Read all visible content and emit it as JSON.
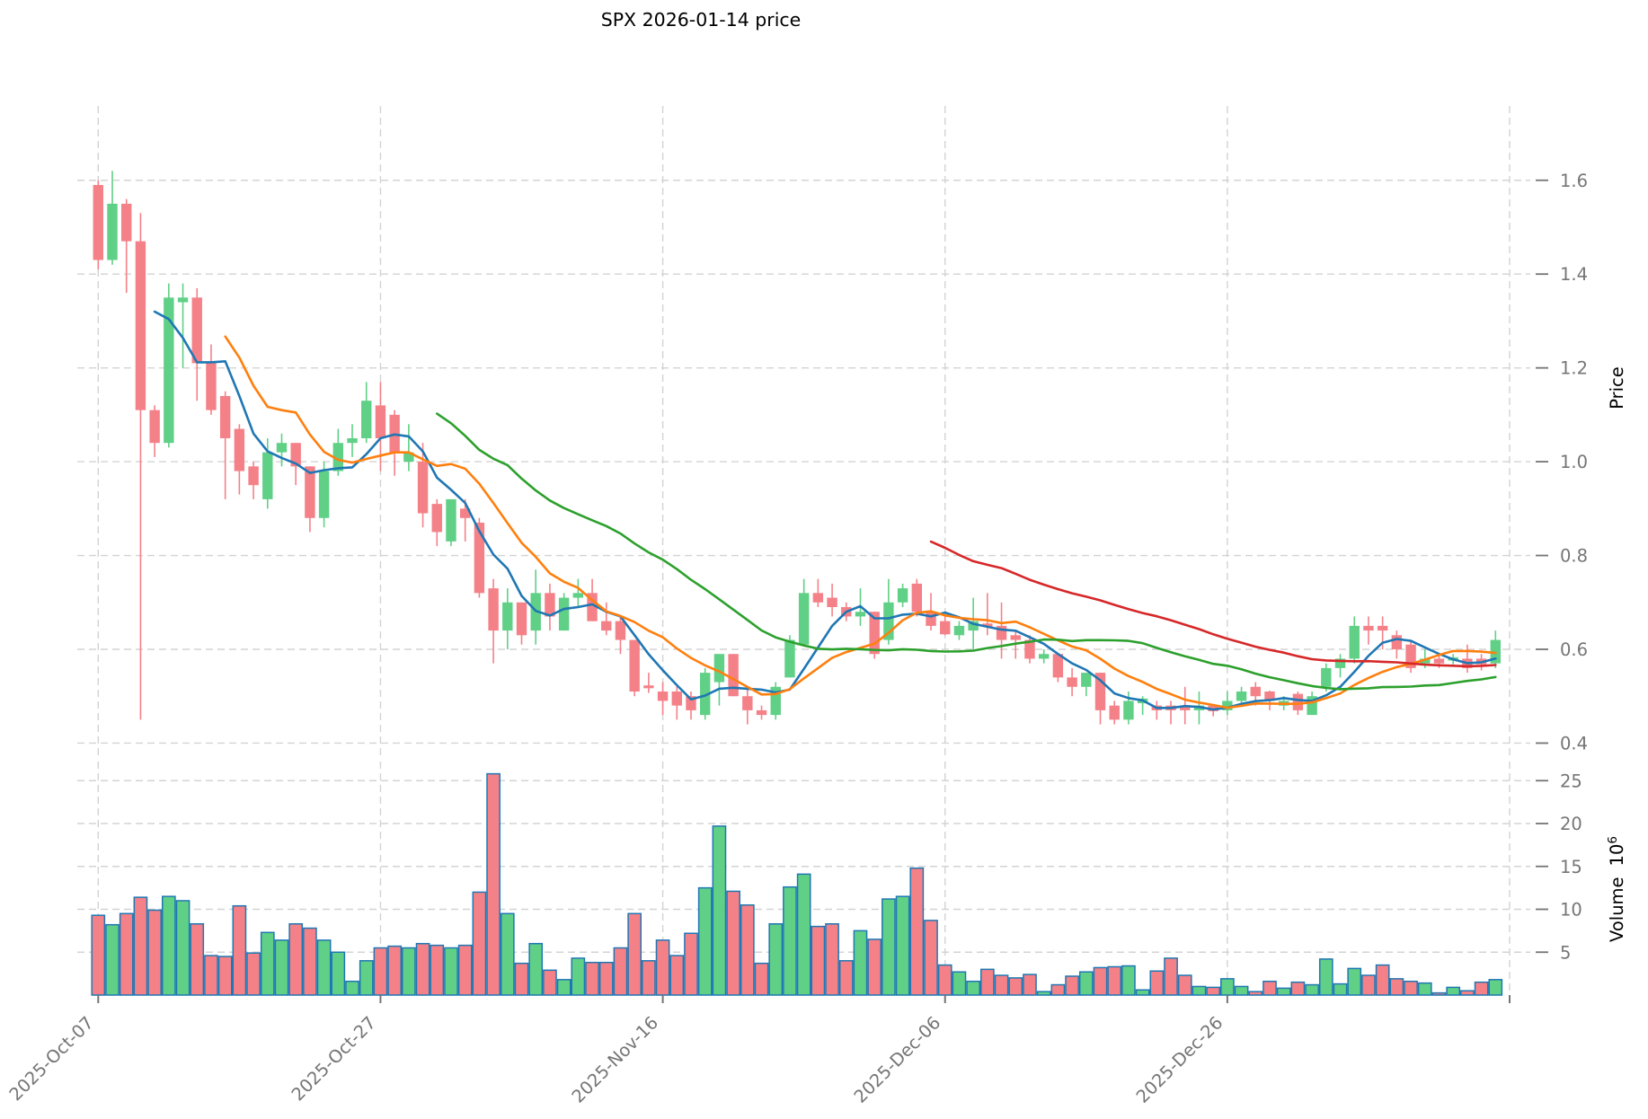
{
  "title": "SPX  2026-01-14  price",
  "price_axis": {
    "label": "Price",
    "ticks": [
      1.6,
      1.4,
      1.2,
      1.0,
      0.8,
      0.6,
      0.4
    ]
  },
  "volume_axis": {
    "label": "Volume",
    "unit_base": "10",
    "unit_exp": "6",
    "ticks": [
      25,
      20,
      15,
      10,
      5
    ]
  },
  "x_axis": {
    "tick_labels": [
      "2025-Oct-07",
      "2025-Oct-27",
      "2025-Nov-16",
      "2025-Dec-06",
      "2025-Dec-26"
    ],
    "tick_indices": [
      0,
      20,
      40,
      60,
      80
    ],
    "unlabeled_tick_index": 100
  },
  "colors": {
    "up": "#60d086",
    "down": "#f48188",
    "ma5": "#1f77b4",
    "ma10": "#ff7f0e",
    "ma25": "#2ca02c",
    "ma60": "#d62728",
    "volume_edge": "#1f77b4",
    "grid": "#d3d3d3",
    "tick_text": "#757575",
    "title_text": "#000000"
  },
  "chart_data": {
    "type": "candlestick",
    "title": "SPX  2026-01-14  price",
    "ylabel": "Price",
    "ylabel2": "Volume 10^6",
    "price_ylim": [
      0.374,
      1.758
    ],
    "volume_ylim": [
      0,
      27.2
    ],
    "grid": true,
    "ma_series": [
      {
        "name": "MA5",
        "window": 5,
        "color": "#1f77b4"
      },
      {
        "name": "MA10",
        "window": 10,
        "color": "#ff7f0e"
      },
      {
        "name": "MA25",
        "window": 25,
        "color": "#2ca02c"
      },
      {
        "name": "MA60",
        "window": 60,
        "color": "#d62728"
      }
    ],
    "dates": [
      "2025-10-07",
      "2025-10-08",
      "2025-10-09",
      "2025-10-10",
      "2025-10-11",
      "2025-10-12",
      "2025-10-13",
      "2025-10-14",
      "2025-10-15",
      "2025-10-16",
      "2025-10-17",
      "2025-10-18",
      "2025-10-19",
      "2025-10-20",
      "2025-10-21",
      "2025-10-22",
      "2025-10-23",
      "2025-10-24",
      "2025-10-25",
      "2025-10-26",
      "2025-10-27",
      "2025-10-28",
      "2025-10-29",
      "2025-10-30",
      "2025-10-31",
      "2025-11-01",
      "2025-11-02",
      "2025-11-03",
      "2025-11-04",
      "2025-11-05",
      "2025-11-06",
      "2025-11-07",
      "2025-11-08",
      "2025-11-09",
      "2025-11-10",
      "2025-11-11",
      "2025-11-12",
      "2025-11-13",
      "2025-11-14",
      "2025-11-15",
      "2025-11-16",
      "2025-11-17",
      "2025-11-18",
      "2025-11-19",
      "2025-11-20",
      "2025-11-21",
      "2025-11-22",
      "2025-11-23",
      "2025-11-24",
      "2025-11-25",
      "2025-11-26",
      "2025-11-27",
      "2025-11-28",
      "2025-11-29",
      "2025-11-30",
      "2025-12-01",
      "2025-12-02",
      "2025-12-03",
      "2025-12-04",
      "2025-12-05",
      "2025-12-06",
      "2025-12-07",
      "2025-12-08",
      "2025-12-09",
      "2025-12-10",
      "2025-12-11",
      "2025-12-12",
      "2025-12-13",
      "2025-12-14",
      "2025-12-15",
      "2025-12-16",
      "2025-12-17",
      "2025-12-18",
      "2025-12-19",
      "2025-12-20",
      "2025-12-21",
      "2025-12-22",
      "2025-12-23",
      "2025-12-24",
      "2025-12-25",
      "2025-12-26",
      "2025-12-27",
      "2025-12-28",
      "2025-12-29",
      "2025-12-30",
      "2025-12-31",
      "2026-01-01",
      "2026-01-02",
      "2026-01-03",
      "2026-01-04",
      "2026-01-05",
      "2026-01-06",
      "2026-01-07",
      "2026-01-08",
      "2026-01-09",
      "2026-01-10",
      "2026-01-11",
      "2026-01-12",
      "2026-01-13",
      "2026-01-14"
    ],
    "ohlc": [
      [
        1.59,
        1.6,
        1.41,
        1.43
      ],
      [
        1.43,
        1.62,
        1.42,
        1.55
      ],
      [
        1.55,
        1.56,
        1.36,
        1.47
      ],
      [
        1.47,
        1.53,
        0.45,
        1.11
      ],
      [
        1.11,
        1.12,
        1.01,
        1.04
      ],
      [
        1.04,
        1.38,
        1.03,
        1.35
      ],
      [
        1.34,
        1.38,
        1.2,
        1.35
      ],
      [
        1.35,
        1.37,
        1.13,
        1.21
      ],
      [
        1.21,
        1.25,
        1.1,
        1.11
      ],
      [
        1.14,
        1.15,
        0.92,
        1.05
      ],
      [
        1.07,
        1.08,
        0.93,
        0.98
      ],
      [
        0.99,
        1.0,
        0.92,
        0.95
      ],
      [
        0.92,
        1.05,
        0.9,
        1.02
      ],
      [
        1.02,
        1.06,
        0.99,
        1.04
      ],
      [
        1.04,
        1.04,
        0.95,
        0.99
      ],
      [
        0.99,
        0.99,
        0.85,
        0.88
      ],
      [
        0.88,
        1.0,
        0.86,
        0.98
      ],
      [
        0.98,
        1.07,
        0.97,
        1.04
      ],
      [
        1.04,
        1.08,
        1.01,
        1.05
      ],
      [
        1.05,
        1.17,
        1.04,
        1.13
      ],
      [
        1.12,
        1.17,
        0.98,
        1.05
      ],
      [
        1.1,
        1.11,
        0.97,
        1.02
      ],
      [
        1.0,
        1.08,
        0.98,
        1.02
      ],
      [
        1.0,
        1.04,
        0.86,
        0.89
      ],
      [
        0.91,
        0.92,
        0.82,
        0.85
      ],
      [
        0.83,
        0.92,
        0.82,
        0.92
      ],
      [
        0.9,
        0.92,
        0.83,
        0.88
      ],
      [
        0.87,
        0.88,
        0.71,
        0.72
      ],
      [
        0.73,
        0.75,
        0.57,
        0.64
      ],
      [
        0.64,
        0.73,
        0.6,
        0.7
      ],
      [
        0.7,
        0.7,
        0.61,
        0.63
      ],
      [
        0.64,
        0.77,
        0.61,
        0.72
      ],
      [
        0.72,
        0.74,
        0.64,
        0.67
      ],
      [
        0.64,
        0.72,
        0.64,
        0.71
      ],
      [
        0.71,
        0.75,
        0.69,
        0.72
      ],
      [
        0.72,
        0.75,
        0.66,
        0.66
      ],
      [
        0.66,
        0.7,
        0.63,
        0.64
      ],
      [
        0.66,
        0.67,
        0.59,
        0.62
      ],
      [
        0.62,
        0.62,
        0.5,
        0.51
      ],
      [
        0.523,
        0.55,
        0.507,
        0.517
      ],
      [
        0.51,
        0.53,
        0.46,
        0.49
      ],
      [
        0.51,
        0.52,
        0.45,
        0.48
      ],
      [
        0.5,
        0.51,
        0.45,
        0.47
      ],
      [
        0.46,
        0.56,
        0.45,
        0.55
      ],
      [
        0.53,
        0.59,
        0.48,
        0.59
      ],
      [
        0.59,
        0.59,
        0.5,
        0.5
      ],
      [
        0.5,
        0.52,
        0.44,
        0.47
      ],
      [
        0.47,
        0.48,
        0.45,
        0.46
      ],
      [
        0.46,
        0.53,
        0.45,
        0.52
      ],
      [
        0.54,
        0.63,
        0.54,
        0.62
      ],
      [
        0.61,
        0.75,
        0.61,
        0.72
      ],
      [
        0.72,
        0.75,
        0.69,
        0.7
      ],
      [
        0.71,
        0.74,
        0.67,
        0.69
      ],
      [
        0.69,
        0.7,
        0.66,
        0.67
      ],
      [
        0.67,
        0.73,
        0.65,
        0.68
      ],
      [
        0.68,
        0.68,
        0.58,
        0.59
      ],
      [
        0.62,
        0.75,
        0.61,
        0.7
      ],
      [
        0.7,
        0.74,
        0.69,
        0.73
      ],
      [
        0.74,
        0.75,
        0.67,
        0.68
      ],
      [
        0.68,
        0.72,
        0.64,
        0.65
      ],
      [
        0.66,
        0.67,
        0.63,
        0.632
      ],
      [
        0.63,
        0.66,
        0.62,
        0.65
      ],
      [
        0.64,
        0.71,
        0.6,
        0.66
      ],
      [
        0.655,
        0.72,
        0.63,
        0.648
      ],
      [
        0.65,
        0.7,
        0.58,
        0.62
      ],
      [
        0.63,
        0.64,
        0.58,
        0.62
      ],
      [
        0.62,
        0.63,
        0.57,
        0.58
      ],
      [
        0.58,
        0.6,
        0.57,
        0.59
      ],
      [
        0.59,
        0.59,
        0.53,
        0.54
      ],
      [
        0.54,
        0.56,
        0.5,
        0.52
      ],
      [
        0.52,
        0.55,
        0.5,
        0.55
      ],
      [
        0.55,
        0.55,
        0.44,
        0.47
      ],
      [
        0.48,
        0.49,
        0.44,
        0.45
      ],
      [
        0.45,
        0.51,
        0.44,
        0.49
      ],
      [
        0.485,
        0.5,
        0.46,
        0.495
      ],
      [
        0.48,
        0.49,
        0.45,
        0.47
      ],
      [
        0.48,
        0.49,
        0.44,
        0.47
      ],
      [
        0.48,
        0.52,
        0.44,
        0.47
      ],
      [
        0.47,
        0.51,
        0.44,
        0.48
      ],
      [
        0.48,
        0.483,
        0.457,
        0.468
      ],
      [
        0.47,
        0.51,
        0.46,
        0.49
      ],
      [
        0.49,
        0.52,
        0.48,
        0.51
      ],
      [
        0.52,
        0.53,
        0.48,
        0.5
      ],
      [
        0.51,
        0.512,
        0.47,
        0.49
      ],
      [
        0.48,
        0.5,
        0.47,
        0.49
      ],
      [
        0.505,
        0.51,
        0.46,
        0.47
      ],
      [
        0.46,
        0.51,
        0.46,
        0.5
      ],
      [
        0.52,
        0.57,
        0.51,
        0.56
      ],
      [
        0.56,
        0.59,
        0.54,
        0.58
      ],
      [
        0.58,
        0.67,
        0.57,
        0.65
      ],
      [
        0.65,
        0.67,
        0.61,
        0.64
      ],
      [
        0.65,
        0.67,
        0.6,
        0.64
      ],
      [
        0.63,
        0.64,
        0.58,
        0.6
      ],
      [
        0.61,
        0.62,
        0.55,
        0.56
      ],
      [
        0.57,
        0.6,
        0.56,
        0.58
      ],
      [
        0.58,
        0.59,
        0.56,
        0.57
      ],
      [
        0.576,
        0.59,
        0.568,
        0.583
      ],
      [
        0.58,
        0.61,
        0.55,
        0.56
      ],
      [
        0.58,
        0.59,
        0.555,
        0.568
      ],
      [
        0.57,
        0.64,
        0.56,
        0.62
      ]
    ],
    "volume_millions": [
      9.3,
      8.2,
      9.5,
      11.4,
      9.9,
      11.5,
      11.0,
      8.3,
      4.6,
      4.5,
      10.4,
      4.9,
      7.3,
      6.4,
      8.3,
      7.8,
      6.4,
      5.0,
      1.6,
      4.0,
      5.5,
      5.7,
      5.5,
      6.0,
      5.8,
      5.5,
      5.8,
      12.0,
      25.8,
      9.5,
      3.7,
      6.0,
      2.9,
      1.8,
      4.3,
      3.8,
      3.8,
      5.5,
      9.5,
      4.0,
      6.4,
      4.6,
      7.2,
      12.5,
      19.7,
      12.1,
      10.5,
      3.7,
      8.3,
      12.6,
      14.1,
      8.0,
      8.3,
      4.0,
      7.5,
      6.5,
      11.2,
      11.5,
      14.8,
      8.7,
      3.5,
      2.7,
      1.6,
      3.0,
      2.3,
      2.0,
      2.4,
      0.4,
      1.2,
      2.2,
      2.7,
      3.2,
      3.3,
      3.4,
      0.6,
      2.8,
      4.3,
      2.3,
      1.0,
      0.9,
      1.9,
      1.0,
      0.4,
      1.6,
      0.8,
      1.5,
      1.2,
      4.2,
      1.3,
      3.1,
      2.3,
      3.5,
      1.9,
      1.6,
      1.4,
      0.25,
      0.9,
      0.5,
      1.5,
      1.8
    ]
  }
}
